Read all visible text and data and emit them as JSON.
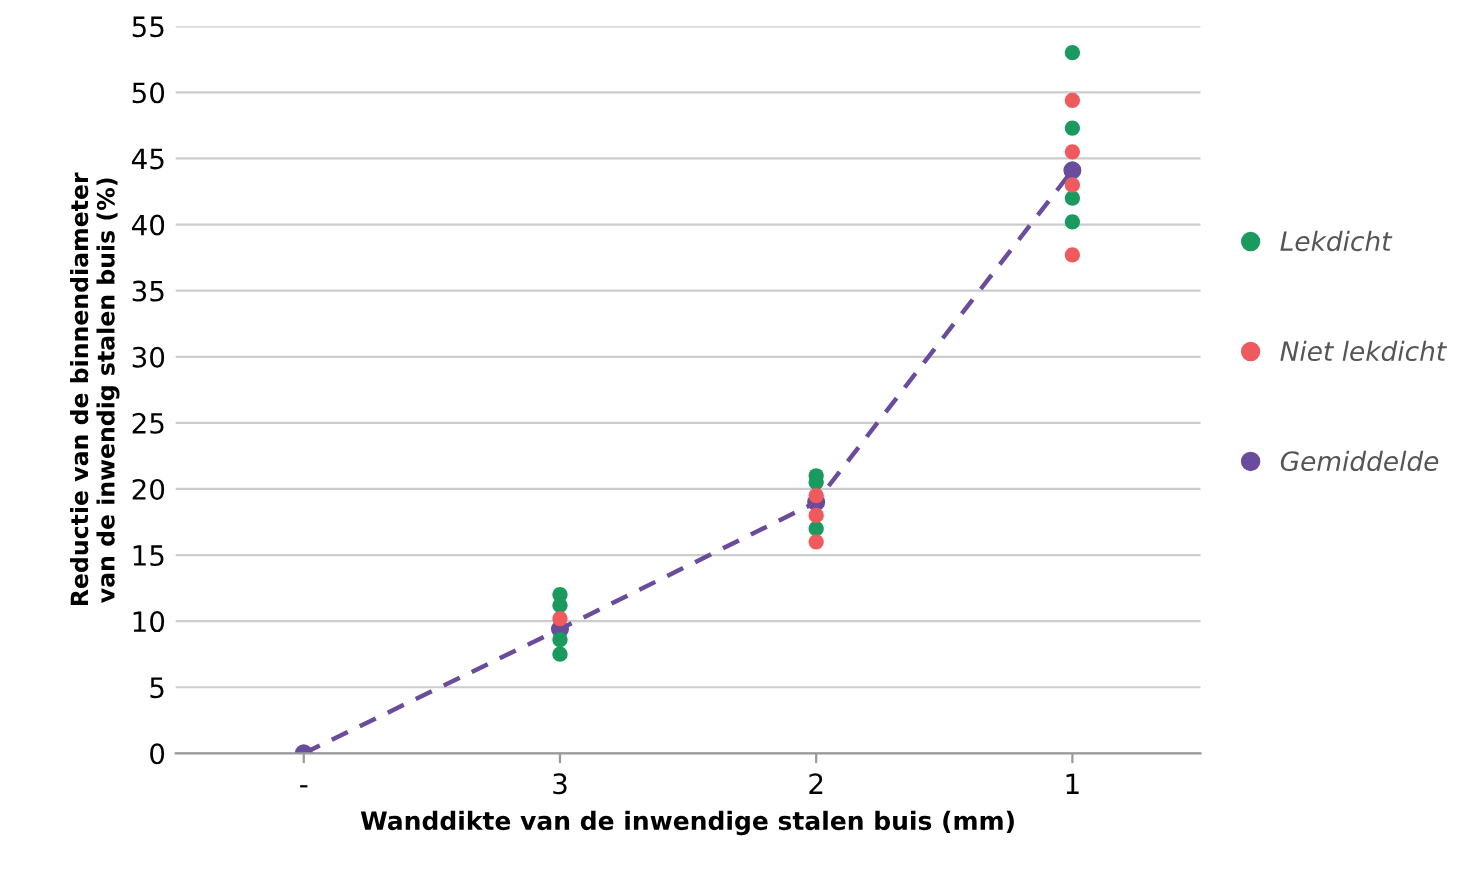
{
  "chart_data": {
    "type": "scatter",
    "xlabel": "Wanddikte van de inwendige stalen buis (mm)",
    "ylabel": "Reductie van de binnendiameter\nvan de inwendig stalen buis (%)",
    "categories": [
      "-",
      "3",
      "2",
      "1"
    ],
    "series": [
      {
        "name": "Lekdicht",
        "color": "#1a9a5e",
        "x": [
          "3",
          "3",
          "3",
          "3",
          "2",
          "2",
          "2",
          "1",
          "1",
          "1",
          "1"
        ],
        "values": [
          12.0,
          11.2,
          8.6,
          7.5,
          21.0,
          20.5,
          17.0,
          53.0,
          47.3,
          42.0,
          40.2
        ]
      },
      {
        "name": "Niet lekdicht",
        "color": "#ee5a5e",
        "x": [
          "3",
          "2",
          "2",
          "2",
          "1",
          "1",
          "1",
          "1"
        ],
        "values": [
          10.2,
          19.5,
          18.0,
          16.0,
          49.4,
          45.5,
          43.0,
          37.7
        ]
      },
      {
        "name": "Gemiddelde",
        "color": "#6a4c9c",
        "type": "line",
        "marker": "circle",
        "line_style": "dashed",
        "values": [
          0,
          9.4,
          19.0,
          44.1
        ]
      }
    ],
    "ylim": [
      0,
      55
    ],
    "yticks": [
      0,
      5,
      10,
      15,
      20,
      25,
      30,
      35,
      40,
      45,
      50,
      55
    ],
    "grid": "y",
    "legend": "right"
  }
}
